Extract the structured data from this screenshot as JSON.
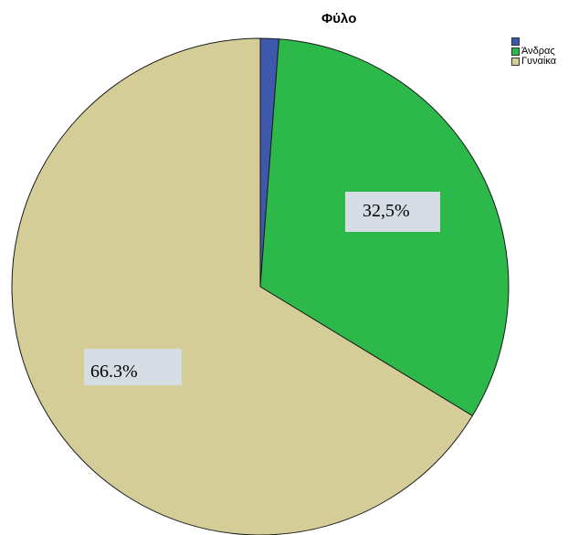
{
  "chart_data": {
    "type": "pie",
    "title": "Φύλο",
    "slices": [
      {
        "label": "",
        "value": 1.2,
        "color": "#3e58ac"
      },
      {
        "label": "Άνδρας",
        "value": 32.5,
        "color": "#2db84a"
      },
      {
        "label": "Γυναίκα",
        "value": 66.3,
        "color": "#d4cd98"
      }
    ],
    "data_labels": [
      "32,5%",
      "66.3%"
    ],
    "legend_position": "top-right",
    "start_angle_deg": 0,
    "direction": "clockwise"
  }
}
